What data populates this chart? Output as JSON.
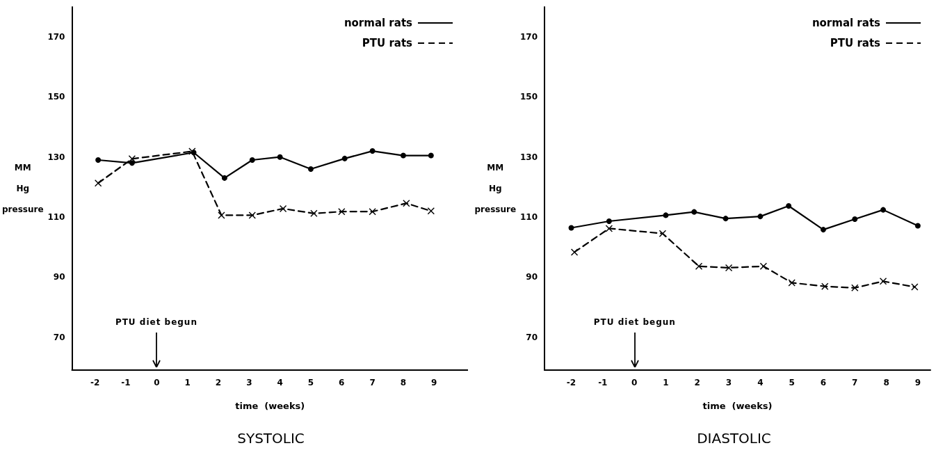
{
  "chart_data": [
    {
      "type": "line",
      "title": "SYSTOLIC",
      "xlabel": "time  (weeks)",
      "ylabel": "MM Hg pressure",
      "xlim": [
        -2.75,
        10.1
      ],
      "xticks": [
        -2,
        -1,
        0,
        1,
        2,
        3,
        4,
        5,
        6,
        7,
        8,
        9
      ],
      "ylim": [
        59,
        180
      ],
      "yticks": [
        70,
        90,
        110,
        130,
        150,
        170
      ],
      "grid": false,
      "legend": "top right",
      "annotations": [
        "PTU diet begun"
      ],
      "series": [
        {
          "name": "normal rats",
          "color": "#000000",
          "line_style": "solid",
          "marker": "circle",
          "x": [
            -1.9,
            -0.8,
            1.2,
            2.2,
            3.1,
            4.0,
            5.0,
            6.1,
            7.0,
            8.0,
            8.9
          ],
          "values": [
            129,
            128,
            131.5,
            123,
            129,
            130,
            126,
            129.5,
            132,
            130.5,
            130.5
          ]
        },
        {
          "name": "PTU rats",
          "color": "#000000",
          "line_style": "dashed",
          "marker": "cross",
          "x": [
            -1.9,
            -0.8,
            1.15,
            2.1,
            3.1,
            4.1,
            5.1,
            6.0,
            7.0,
            8.1,
            8.9
          ],
          "values": [
            121.3,
            129.4,
            131.9,
            110.6,
            110.6,
            112.8,
            111.2,
            111.8,
            111.8,
            114.6,
            112
          ]
        }
      ]
    },
    {
      "type": "line",
      "title": "DIASTOLIC",
      "xlabel": "time  (weeks)",
      "ylabel": "MM Hg pressure",
      "xlim": [
        -2.85,
        9.4
      ],
      "xticks": [
        -2,
        -1,
        0,
        1,
        2,
        3,
        4,
        5,
        6,
        7,
        8,
        9
      ],
      "ylim": [
        59,
        180
      ],
      "yticks": [
        70,
        90,
        110,
        130,
        150,
        170
      ],
      "grid": false,
      "legend": "top right",
      "annotations": [
        "PTU diet begun"
      ],
      "series": [
        {
          "name": "normal rats",
          "color": "#000000",
          "line_style": "solid",
          "marker": "circle",
          "x": [
            -2.0,
            -0.8,
            1.0,
            1.9,
            2.9,
            4.0,
            4.9,
            6.0,
            7.0,
            7.9,
            9.0
          ],
          "values": [
            106.4,
            108.6,
            110.6,
            111.7,
            109.5,
            110.2,
            113.7,
            105.8,
            109.3,
            112.4,
            107.1
          ]
        },
        {
          "name": "PTU rats",
          "color": "#000000",
          "line_style": "dashed",
          "marker": "cross",
          "x": [
            -1.9,
            -0.8,
            0.9,
            2.05,
            3.0,
            4.1,
            5.0,
            6.05,
            7.0,
            7.9,
            8.9
          ],
          "values": [
            98.3,
            106.2,
            104.5,
            93.6,
            93.1,
            93.6,
            88.1,
            86.9,
            86.4,
            88.6,
            86.7
          ]
        }
      ]
    }
  ]
}
